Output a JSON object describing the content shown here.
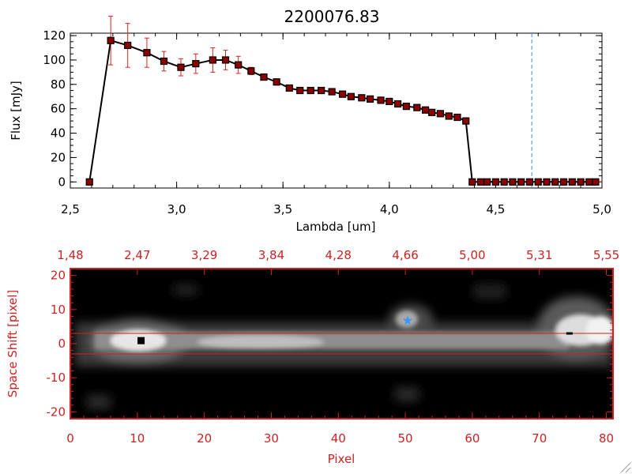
{
  "title": "2200076.83",
  "colors": {
    "spectrum_line": "#000000",
    "marker": "#8b0000",
    "errorbar": "#dd2222",
    "dashed_line": "#3399cc",
    "image_axes": "#cc2222",
    "trace_lines": "#cc2222",
    "star": "#3399ff"
  },
  "chart_data": [
    {
      "type": "line",
      "xlabel": "Lambda [um]",
      "ylabel": "Flux [mJy]",
      "xlim": [
        2.5,
        5.0
      ],
      "ylim": [
        -5,
        122
      ],
      "xticks": [
        "2.5",
        "3.0",
        "3.5",
        "4.0",
        "4.5",
        "5.0"
      ],
      "yticks": [
        "0",
        "20",
        "40",
        "60",
        "80",
        "100",
        "120"
      ],
      "grid": false,
      "vline_dashed": 4.67,
      "hline_dashed": 0,
      "series": [
        {
          "x": [
            2.59,
            2.69,
            2.77,
            2.86,
            2.94,
            3.02,
            3.09,
            3.17,
            3.23,
            3.29,
            3.35,
            3.41,
            3.47,
            3.53,
            3.58,
            3.63,
            3.68,
            3.73,
            3.78,
            3.82,
            3.87,
            3.91,
            3.96,
            4.0,
            4.04,
            4.08,
            4.13,
            4.17,
            4.2,
            4.24,
            4.28,
            4.32,
            4.36,
            4.39,
            4.43,
            4.46,
            4.5,
            4.54,
            4.58,
            4.62,
            4.66,
            4.7,
            4.74,
            4.78,
            4.82,
            4.86,
            4.9,
            4.94,
            4.97
          ],
          "y": [
            0,
            116,
            112,
            106,
            99,
            94,
            97,
            100,
            100,
            96,
            91,
            86,
            82,
            77,
            75,
            75,
            75,
            74,
            72,
            70,
            69,
            68,
            67,
            66,
            64,
            62,
            61,
            59,
            57,
            56,
            54,
            53,
            50,
            0,
            0,
            0,
            0,
            0,
            0,
            0,
            0,
            0,
            0,
            0,
            0,
            0,
            0,
            0,
            0
          ],
          "err": [
            0,
            20,
            18,
            12,
            8,
            7,
            8,
            10,
            8,
            7,
            3,
            2,
            1,
            1,
            1,
            1,
            1,
            1,
            1,
            1,
            1,
            1,
            1,
            1,
            1,
            1,
            1,
            1,
            1,
            1,
            1,
            1,
            1,
            0,
            0,
            0,
            0,
            0,
            0,
            0,
            0,
            0,
            0,
            0,
            0,
            0,
            0,
            0,
            0
          ]
        }
      ]
    },
    {
      "type": "heatmap",
      "xlabel": "Pixel",
      "ylabel": "Space Shift [pixel]",
      "xlim": [
        0,
        81
      ],
      "ylim": [
        -22,
        22
      ],
      "xticks": [
        "0",
        "10",
        "20",
        "30",
        "40",
        "50",
        "60",
        "70",
        "80"
      ],
      "yticks": [
        "-20",
        "-10",
        "0",
        "10",
        "20"
      ],
      "top_ticks": [
        "1.48",
        "2.47",
        "3.29",
        "3.84",
        "4.28",
        "4.66",
        "5.00",
        "5.31",
        "5.55"
      ],
      "trace_lines_y": [
        3,
        -3
      ],
      "star": {
        "x": 50,
        "y": 7
      },
      "dark_marks": [
        {
          "x": 10.5,
          "y": 1
        },
        {
          "x": 74.5,
          "y": 3
        }
      ]
    }
  ]
}
